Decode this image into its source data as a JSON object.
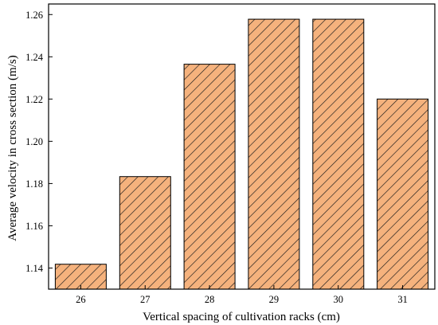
{
  "chart_data": {
    "type": "bar",
    "categories": [
      "26",
      "27",
      "28",
      "29",
      "30",
      "31"
    ],
    "values": [
      1.1418,
      1.1833,
      1.2365,
      1.2578,
      1.2578,
      1.22
    ],
    "xlabel": "Vertical spacing of cultivation racks (cm)",
    "ylabel": "Average velocity in cross section (m/s)",
    "ylim": [
      1.13,
      1.265
    ],
    "yticks": [
      "1.14",
      "1.16",
      "1.18",
      "1.20",
      "1.22",
      "1.24",
      "1.26"
    ],
    "grid": false,
    "legend": "none",
    "bar_fill": "#f5b27d",
    "hatch_color": "#1a1a1a",
    "axis_color": "#000000"
  }
}
